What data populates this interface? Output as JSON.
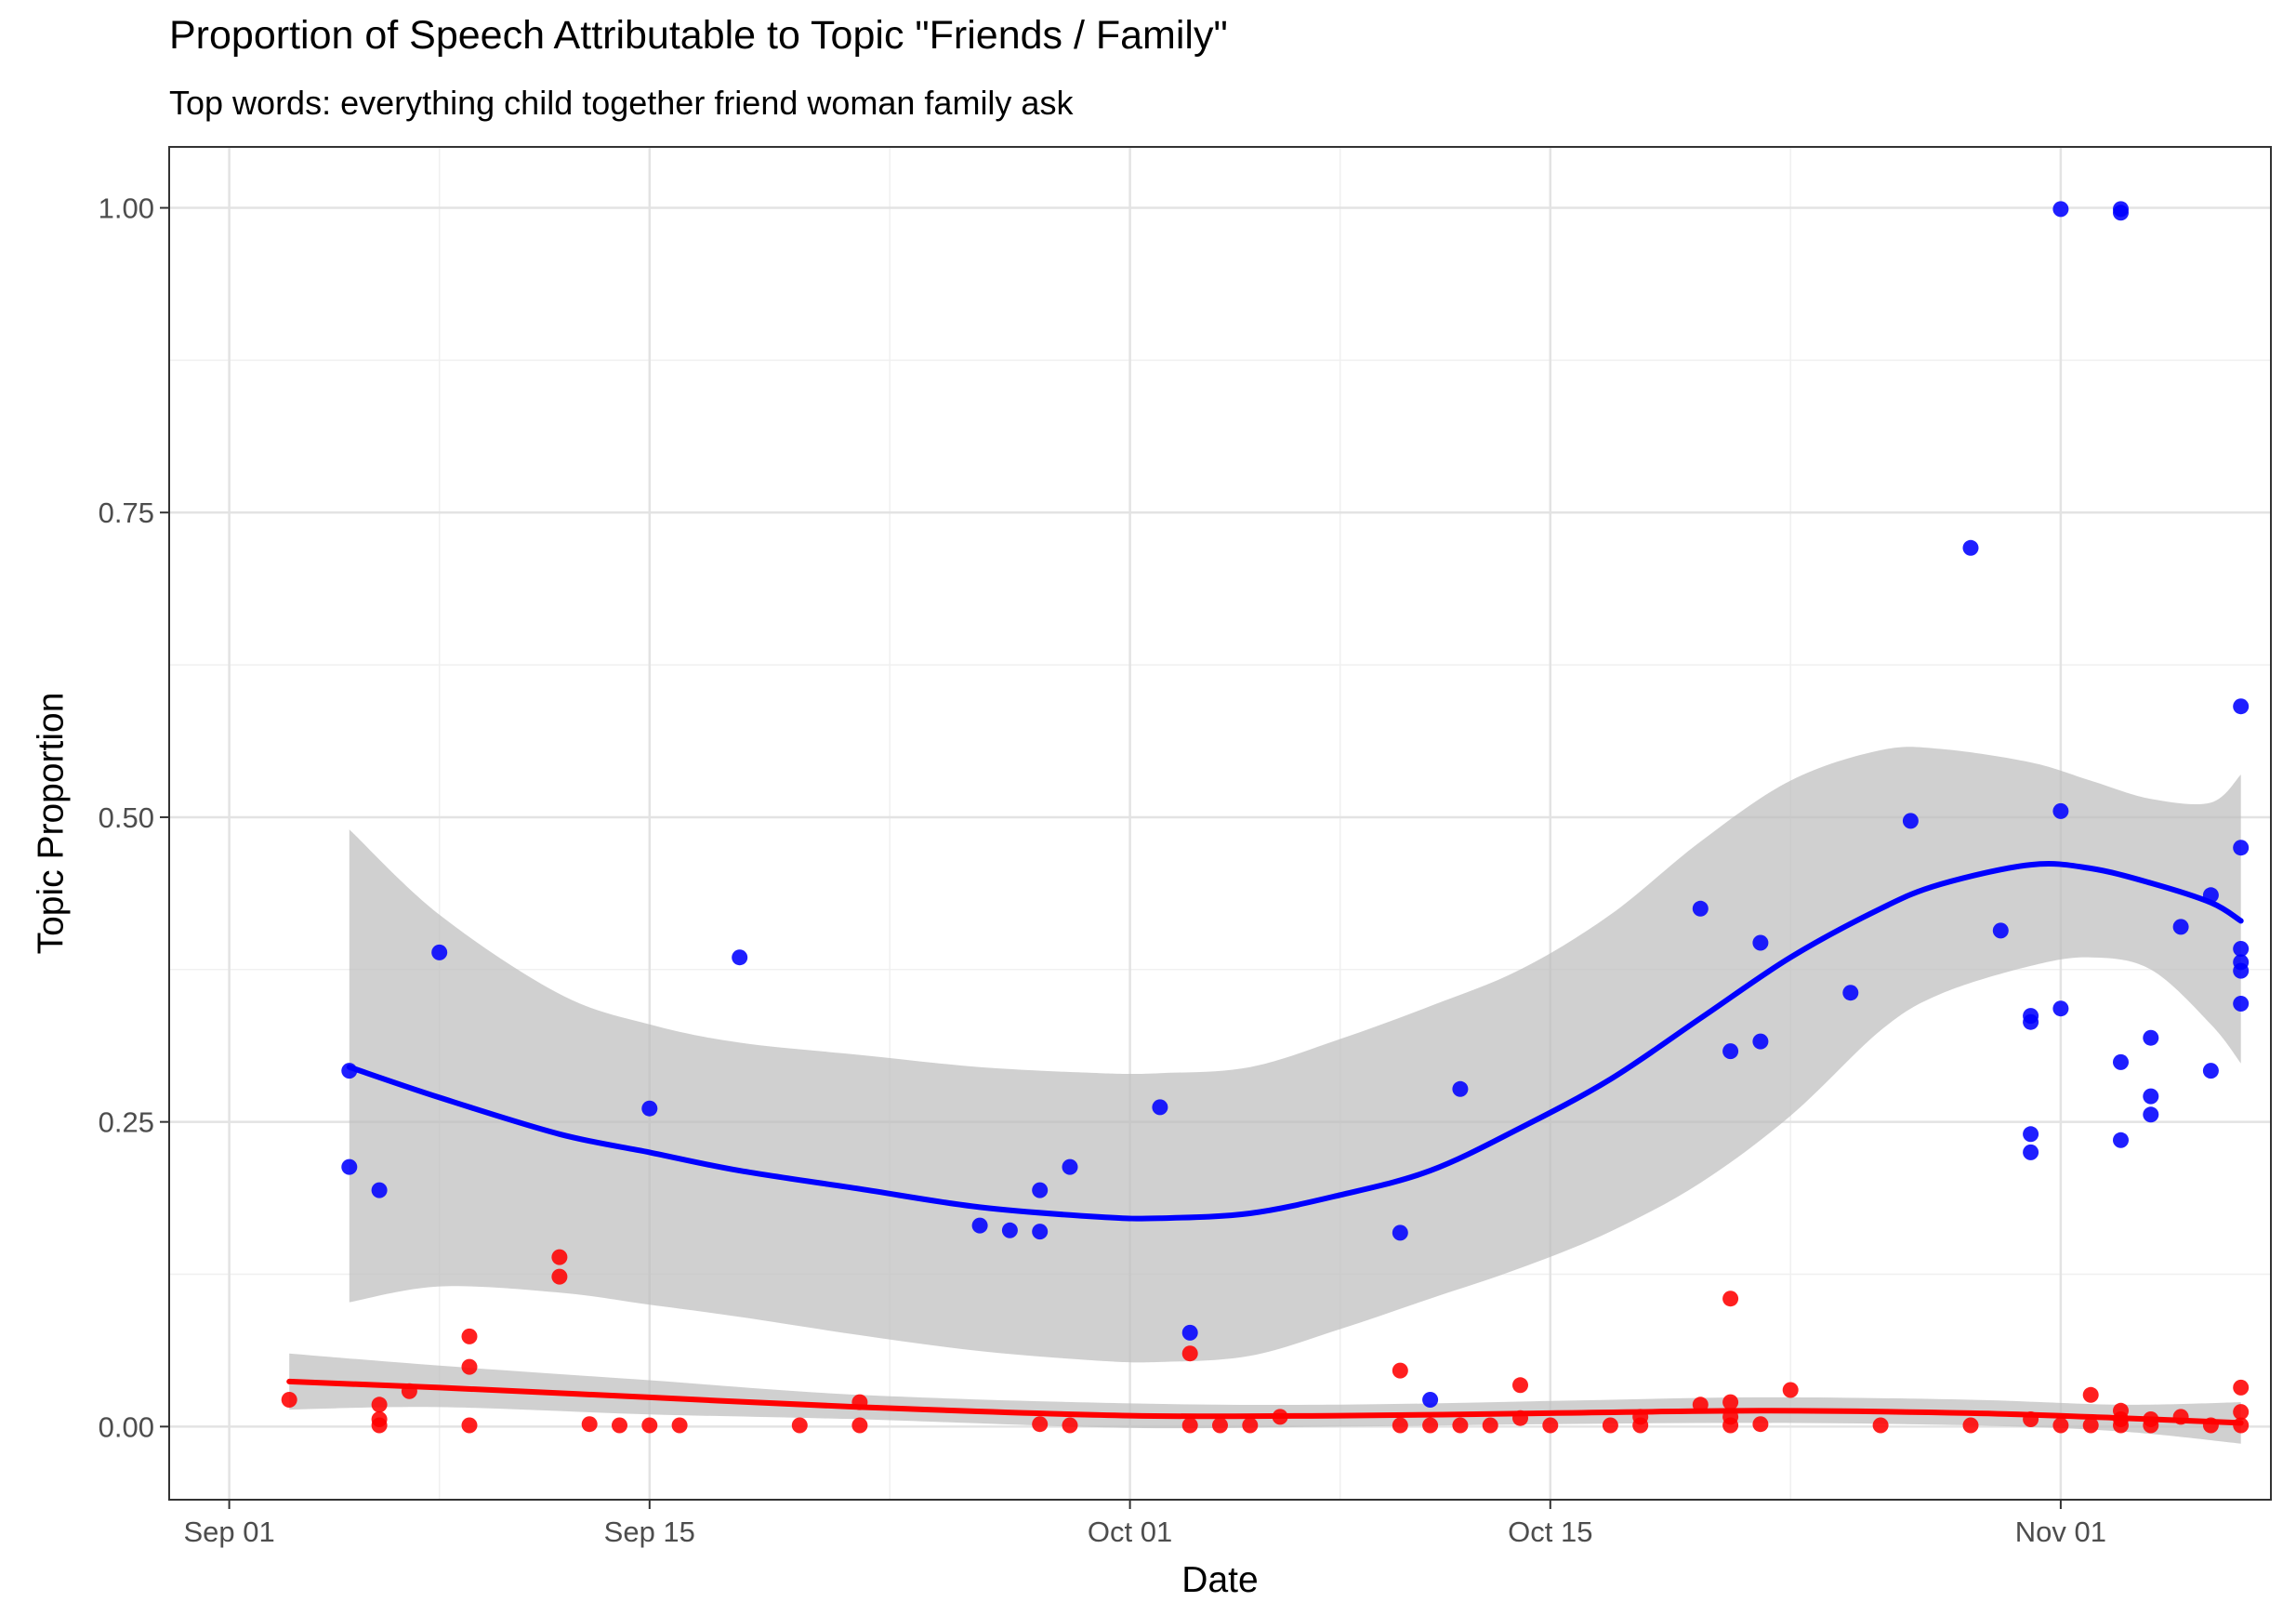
{
  "chart_data": {
    "type": "scatter",
    "title": "Proportion of Speech Attributable to Topic \"Friends / Family\"",
    "subtitle": "Top words: everything child together friend woman family ask",
    "xlabel": "Date",
    "ylabel": "Topic Proportion",
    "x_ticks": [
      "Sep 01",
      "Sep 15",
      "Oct 01",
      "Oct 15",
      "Nov 01"
    ],
    "y_ticks": [
      "0.00",
      "0.25",
      "0.50",
      "0.75",
      "1.00"
    ],
    "xlim": [
      "2015-08-30",
      "2015-11-08"
    ],
    "ylim": [
      -0.06,
      1.05
    ],
    "grid": true,
    "colors": {
      "blue": "#0000ff",
      "red": "#ff0000",
      "ribbon": "#bebebe"
    },
    "series": [
      {
        "color": "#0000ff",
        "points": [
          [
            "2015-09-05",
            0.292
          ],
          [
            "2015-09-05",
            0.213
          ],
          [
            "2015-09-06",
            0.194
          ],
          [
            "2015-09-08",
            0.389
          ],
          [
            "2015-09-15",
            0.261
          ],
          [
            "2015-09-18",
            0.385
          ],
          [
            "2015-09-26",
            0.165
          ],
          [
            "2015-09-27",
            0.161
          ],
          [
            "2015-09-28",
            0.16
          ],
          [
            "2015-09-28",
            0.194
          ],
          [
            "2015-09-29",
            0.213
          ],
          [
            "2015-10-02",
            0.262
          ],
          [
            "2015-10-03",
            0.077
          ],
          [
            "2015-10-10",
            0.159
          ],
          [
            "2015-10-11",
            0.022
          ],
          [
            "2015-10-12",
            0.277
          ],
          [
            "2015-10-20",
            0.425
          ],
          [
            "2015-10-21",
            0.308
          ],
          [
            "2015-10-22",
            0.397
          ],
          [
            "2015-10-22",
            0.316
          ],
          [
            "2015-10-25",
            0.356
          ],
          [
            "2015-10-27",
            0.497
          ],
          [
            "2015-10-29",
            0.721
          ],
          [
            "2015-10-30",
            0.407
          ],
          [
            "2015-10-31",
            0.337
          ],
          [
            "2015-10-31",
            0.332
          ],
          [
            "2015-10-31",
            0.24
          ],
          [
            "2015-10-31",
            0.225
          ],
          [
            "2015-11-01",
            0.999
          ],
          [
            "2015-11-01",
            0.505
          ],
          [
            "2015-11-01",
            0.343
          ],
          [
            "2015-11-03",
            0.999
          ],
          [
            "2015-11-03",
            0.996
          ],
          [
            "2015-11-03",
            0.299
          ],
          [
            "2015-11-03",
            0.235
          ],
          [
            "2015-11-04",
            0.319
          ],
          [
            "2015-11-04",
            0.271
          ],
          [
            "2015-11-04",
            0.256
          ],
          [
            "2015-11-05",
            0.41
          ],
          [
            "2015-11-06",
            0.436
          ],
          [
            "2015-11-06",
            0.292
          ],
          [
            "2015-11-07",
            0.591
          ],
          [
            "2015-11-07",
            0.475
          ],
          [
            "2015-11-07",
            0.392
          ],
          [
            "2015-11-07",
            0.381
          ],
          [
            "2015-11-07",
            0.374
          ],
          [
            "2015-11-07",
            0.347
          ]
        ],
        "smooth": [
          [
            "2015-09-05",
            0.295
          ],
          [
            "2015-09-08",
            0.27
          ],
          [
            "2015-09-12",
            0.24
          ],
          [
            "2015-09-15",
            0.225
          ],
          [
            "2015-09-18",
            0.21
          ],
          [
            "2015-09-22",
            0.195
          ],
          [
            "2015-09-26",
            0.18
          ],
          [
            "2015-09-30",
            0.172
          ],
          [
            "2015-10-02",
            0.171
          ],
          [
            "2015-10-05",
            0.175
          ],
          [
            "2015-10-08",
            0.19
          ],
          [
            "2015-10-11",
            0.21
          ],
          [
            "2015-10-14",
            0.245
          ],
          [
            "2015-10-17",
            0.285
          ],
          [
            "2015-10-20",
            0.335
          ],
          [
            "2015-10-23",
            0.385
          ],
          [
            "2015-10-26",
            0.425
          ],
          [
            "2015-10-28",
            0.445
          ],
          [
            "2015-10-31",
            0.461
          ],
          [
            "2015-11-02",
            0.458
          ],
          [
            "2015-11-04",
            0.446
          ],
          [
            "2015-11-06",
            0.43
          ],
          [
            "2015-11-07",
            0.415
          ]
        ],
        "ribbon_upper": [
          [
            "2015-09-05",
            0.49
          ],
          [
            "2015-09-08",
            0.42
          ],
          [
            "2015-09-12",
            0.355
          ],
          [
            "2015-09-15",
            0.33
          ],
          [
            "2015-09-18",
            0.315
          ],
          [
            "2015-09-22",
            0.305
          ],
          [
            "2015-09-26",
            0.295
          ],
          [
            "2015-09-30",
            0.29
          ],
          [
            "2015-10-02",
            0.29
          ],
          [
            "2015-10-05",
            0.295
          ],
          [
            "2015-10-08",
            0.318
          ],
          [
            "2015-10-11",
            0.345
          ],
          [
            "2015-10-14",
            0.375
          ],
          [
            "2015-10-17",
            0.42
          ],
          [
            "2015-10-20",
            0.48
          ],
          [
            "2015-10-23",
            0.53
          ],
          [
            "2015-10-26",
            0.555
          ],
          [
            "2015-10-28",
            0.556
          ],
          [
            "2015-10-31",
            0.545
          ],
          [
            "2015-11-02",
            0.53
          ],
          [
            "2015-11-04",
            0.515
          ],
          [
            "2015-11-06",
            0.512
          ],
          [
            "2015-11-07",
            0.535
          ]
        ],
        "ribbon_lower": [
          [
            "2015-09-05",
            0.102
          ],
          [
            "2015-09-08",
            0.115
          ],
          [
            "2015-09-12",
            0.11
          ],
          [
            "2015-09-15",
            0.1
          ],
          [
            "2015-09-18",
            0.09
          ],
          [
            "2015-09-22",
            0.075
          ],
          [
            "2015-09-26",
            0.062
          ],
          [
            "2015-09-30",
            0.054
          ],
          [
            "2015-10-02",
            0.053
          ],
          [
            "2015-10-05",
            0.058
          ],
          [
            "2015-10-08",
            0.08
          ],
          [
            "2015-10-11",
            0.105
          ],
          [
            "2015-10-14",
            0.13
          ],
          [
            "2015-10-17",
            0.16
          ],
          [
            "2015-10-20",
            0.2
          ],
          [
            "2015-10-23",
            0.255
          ],
          [
            "2015-10-26",
            0.325
          ],
          [
            "2015-10-28",
            0.355
          ],
          [
            "2015-10-31",
            0.378
          ],
          [
            "2015-11-02",
            0.385
          ],
          [
            "2015-11-04",
            0.375
          ],
          [
            "2015-11-06",
            0.33
          ],
          [
            "2015-11-07",
            0.298
          ]
        ]
      },
      {
        "color": "#ff0000",
        "points": [
          [
            "2015-09-03",
            0.022
          ],
          [
            "2015-09-06",
            0.018
          ],
          [
            "2015-09-06",
            0.006
          ],
          [
            "2015-09-06",
            0.001
          ],
          [
            "2015-09-07",
            0.029
          ],
          [
            "2015-09-09",
            0.074
          ],
          [
            "2015-09-09",
            0.049
          ],
          [
            "2015-09-09",
            0.001
          ],
          [
            "2015-09-12",
            0.139
          ],
          [
            "2015-09-12",
            0.123
          ],
          [
            "2015-09-13",
            0.002
          ],
          [
            "2015-09-14",
            0.001
          ],
          [
            "2015-09-15",
            0.001
          ],
          [
            "2015-09-16",
            0.001
          ],
          [
            "2015-09-20",
            0.001
          ],
          [
            "2015-09-22",
            0.02
          ],
          [
            "2015-09-22",
            0.001
          ],
          [
            "2015-09-28",
            0.002
          ],
          [
            "2015-09-29",
            0.001
          ],
          [
            "2015-10-03",
            0.06
          ],
          [
            "2015-10-03",
            0.001
          ],
          [
            "2015-10-04",
            0.001
          ],
          [
            "2015-10-05",
            0.001
          ],
          [
            "2015-10-06",
            0.008
          ],
          [
            "2015-10-10",
            0.046
          ],
          [
            "2015-10-10",
            0.001
          ],
          [
            "2015-10-11",
            0.001
          ],
          [
            "2015-10-12",
            0.001
          ],
          [
            "2015-10-13",
            0.001
          ],
          [
            "2015-10-14",
            0.034
          ],
          [
            "2015-10-14",
            0.007
          ],
          [
            "2015-10-15",
            0.001
          ],
          [
            "2015-10-17",
            0.001
          ],
          [
            "2015-10-18",
            0.008
          ],
          [
            "2015-10-18",
            0.001
          ],
          [
            "2015-10-20",
            0.018
          ],
          [
            "2015-10-21",
            0.105
          ],
          [
            "2015-10-21",
            0.02
          ],
          [
            "2015-10-21",
            0.008
          ],
          [
            "2015-10-21",
            0.001
          ],
          [
            "2015-10-22",
            0.002
          ],
          [
            "2015-10-23",
            0.03
          ],
          [
            "2015-10-26",
            0.001
          ],
          [
            "2015-10-29",
            0.001
          ],
          [
            "2015-10-31",
            0.006
          ],
          [
            "2015-11-01",
            0.001
          ],
          [
            "2015-11-02",
            0.026
          ],
          [
            "2015-11-02",
            0.001
          ],
          [
            "2015-11-03",
            0.013
          ],
          [
            "2015-11-03",
            0.006
          ],
          [
            "2015-11-03",
            0.001
          ],
          [
            "2015-11-04",
            0.006
          ],
          [
            "2015-11-04",
            0.001
          ],
          [
            "2015-11-05",
            0.008
          ],
          [
            "2015-11-06",
            0.001
          ],
          [
            "2015-11-07",
            0.032
          ],
          [
            "2015-11-07",
            0.012
          ],
          [
            "2015-11-07",
            0.001
          ]
        ],
        "smooth": [
          [
            "2015-09-03",
            0.037
          ],
          [
            "2015-09-08",
            0.032
          ],
          [
            "2015-09-15",
            0.024
          ],
          [
            "2015-09-22",
            0.016
          ],
          [
            "2015-10-01",
            0.009
          ],
          [
            "2015-10-08",
            0.009
          ],
          [
            "2015-10-15",
            0.011
          ],
          [
            "2015-10-22",
            0.013
          ],
          [
            "2015-10-29",
            0.011
          ],
          [
            "2015-11-03",
            0.007
          ],
          [
            "2015-11-07",
            0.003
          ]
        ],
        "ribbon_upper": [
          [
            "2015-09-03",
            0.06
          ],
          [
            "2015-09-08",
            0.05
          ],
          [
            "2015-09-15",
            0.038
          ],
          [
            "2015-09-22",
            0.026
          ],
          [
            "2015-10-01",
            0.019
          ],
          [
            "2015-10-08",
            0.018
          ],
          [
            "2015-10-15",
            0.021
          ],
          [
            "2015-10-22",
            0.024
          ],
          [
            "2015-10-29",
            0.022
          ],
          [
            "2015-11-03",
            0.018
          ],
          [
            "2015-11-07",
            0.02
          ]
        ],
        "ribbon_lower": [
          [
            "2015-09-03",
            0.014
          ],
          [
            "2015-09-08",
            0.016
          ],
          [
            "2015-09-15",
            0.01
          ],
          [
            "2015-09-22",
            0.006
          ],
          [
            "2015-10-01",
            -0.001
          ],
          [
            "2015-10-08",
            0.0
          ],
          [
            "2015-10-15",
            0.002
          ],
          [
            "2015-10-22",
            0.003
          ],
          [
            "2015-10-29",
            0.001
          ],
          [
            "2015-11-03",
            -0.004
          ],
          [
            "2015-11-07",
            -0.014
          ]
        ]
      }
    ]
  }
}
